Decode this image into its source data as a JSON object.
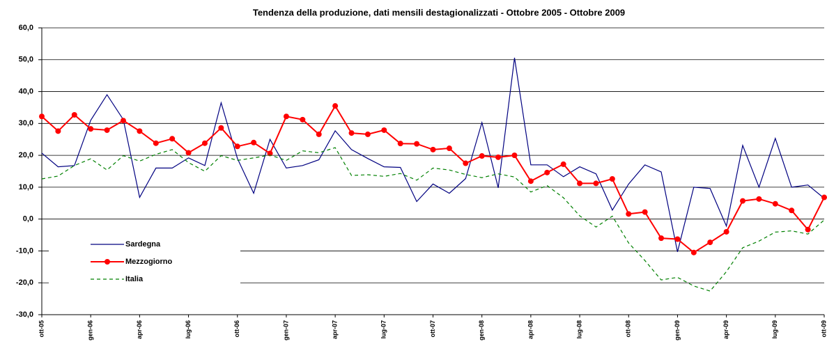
{
  "chart_data": {
    "type": "line",
    "title": "Tendenza della produzione, dati mensili destagionalizzati - Ottobre 2005 - Ottobre 2009",
    "categories": [
      "ott-05",
      null,
      null,
      "gen-06",
      null,
      null,
      "apr-06",
      null,
      null,
      "lug-06",
      null,
      null,
      "ott-06",
      null,
      null,
      "gen-07",
      null,
      null,
      "apr-07",
      null,
      null,
      "lug-07",
      null,
      null,
      "ott-07",
      null,
      null,
      "gen-08",
      null,
      null,
      "apr-08",
      null,
      null,
      "lug-08",
      null,
      null,
      "ott-08",
      null,
      null,
      "gen-09",
      null,
      null,
      "apr-09",
      null,
      null,
      "lug-09",
      null,
      null,
      "ott-09"
    ],
    "series": [
      {
        "name": "Sardegna",
        "color": "#000080",
        "style": "solid",
        "values": [
          20.7,
          16.4,
          16.8,
          31.0,
          39.0,
          31.2,
          6.8,
          16.0,
          16.0,
          19.2,
          16.8,
          36.5,
          19.0,
          8.1,
          25.0,
          16.0,
          16.8,
          18.6,
          27.7,
          21.8,
          19.0,
          16.4,
          16.2,
          5.5,
          11.0,
          8.1,
          12.7,
          30.3,
          9.8,
          50.6,
          17.0,
          17.0,
          13.3,
          16.4,
          14.2,
          2.8,
          11.0,
          17.0,
          14.8,
          -10.3,
          10.0,
          9.6,
          -2.2,
          23.1,
          10.0,
          25.3,
          10.0,
          10.7,
          6.5
        ]
      },
      {
        "name": "Mezzogiorno",
        "color": "#ff0000",
        "style": "marker",
        "values": [
          32.2,
          27.6,
          32.7,
          28.3,
          27.9,
          30.9,
          27.6,
          23.8,
          25.2,
          20.8,
          23.8,
          28.6,
          22.8,
          24.0,
          20.6,
          32.2,
          31.2,
          26.6,
          35.5,
          27.0,
          26.6,
          27.9,
          23.7,
          23.6,
          21.8,
          22.2,
          17.5,
          19.8,
          19.4,
          20.0,
          11.9,
          14.6,
          17.2,
          11.2,
          11.2,
          12.6,
          1.6,
          2.2,
          -6.0,
          -6.3,
          -10.5,
          -7.3,
          -4.0,
          5.7,
          6.3,
          4.8,
          2.7,
          -3.3,
          6.8
        ]
      },
      {
        "name": "Italia",
        "color": "#008000",
        "style": "dashed",
        "values": [
          12.6,
          13.5,
          16.8,
          18.9,
          15.4,
          19.9,
          18.2,
          20.3,
          21.8,
          17.7,
          15.0,
          19.9,
          18.4,
          19.2,
          20.1,
          18.4,
          21.4,
          20.8,
          22.4,
          13.7,
          13.9,
          13.4,
          14.3,
          12.2,
          16.0,
          15.4,
          14.0,
          13.0,
          14.2,
          13.2,
          8.5,
          10.5,
          6.7,
          1.0,
          -2.5,
          0.9,
          -7.5,
          -13.0,
          -19.1,
          -18.3,
          -21.0,
          -22.6,
          -16.5,
          -9.0,
          -6.9,
          -4.1,
          -3.7,
          -4.7,
          -0.3
        ]
      }
    ],
    "ylim": [
      -30,
      60
    ],
    "yticks": [
      {
        "value": -30,
        "label": "-30,0"
      },
      {
        "value": -20,
        "label": "-20,0"
      },
      {
        "value": -10,
        "label": "-10,0"
      },
      {
        "value": 0,
        "label": "0,0"
      },
      {
        "value": 10,
        "label": "10,0"
      },
      {
        "value": 20,
        "label": "20,0"
      },
      {
        "value": 30,
        "label": "30,0"
      },
      {
        "value": 40,
        "label": "40,0"
      },
      {
        "value": 50,
        "label": "50,0"
      },
      {
        "value": 60,
        "label": "60,0"
      }
    ],
    "grid": true,
    "legend": "lower left"
  }
}
